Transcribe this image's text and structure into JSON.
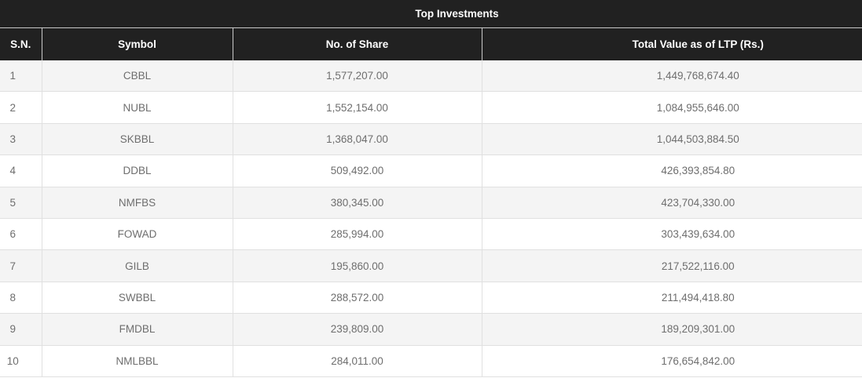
{
  "table": {
    "title": "Top Investments",
    "columns": [
      "S.N.",
      "Symbol",
      "No. of Share",
      "Total Value as of LTP (Rs.)"
    ],
    "rows": [
      [
        "1",
        "CBBL",
        "1,577,207.00",
        "1,449,768,674.40"
      ],
      [
        "2",
        "NUBL",
        "1,552,154.00",
        "1,084,955,646.00"
      ],
      [
        "3",
        "SKBBL",
        "1,368,047.00",
        "1,044,503,884.50"
      ],
      [
        "4",
        "DDBL",
        "509,492.00",
        "426,393,854.80"
      ],
      [
        "5",
        "NMFBS",
        "380,345.00",
        "423,704,330.00"
      ],
      [
        "6",
        "FOWAD",
        "285,994.00",
        "303,439,634.00"
      ],
      [
        "7",
        "GILB",
        "195,860.00",
        "217,522,116.00"
      ],
      [
        "8",
        "SWBBL",
        "288,572.00",
        "211,494,418.80"
      ],
      [
        "9",
        "FMDBL",
        "239,809.00",
        "189,209,301.00"
      ],
      [
        "10",
        "NMLBBL",
        "284,011.00",
        "176,654,842.00"
      ]
    ],
    "colors": {
      "header_bg": "#212121",
      "header_text": "#ffffff",
      "row_stripe_bg": "#f4f4f4",
      "row_bg": "#ffffff",
      "cell_text": "#6e6e6e",
      "grid_line": "#e0e0e0",
      "header_divider": "#c9c9c9"
    }
  }
}
